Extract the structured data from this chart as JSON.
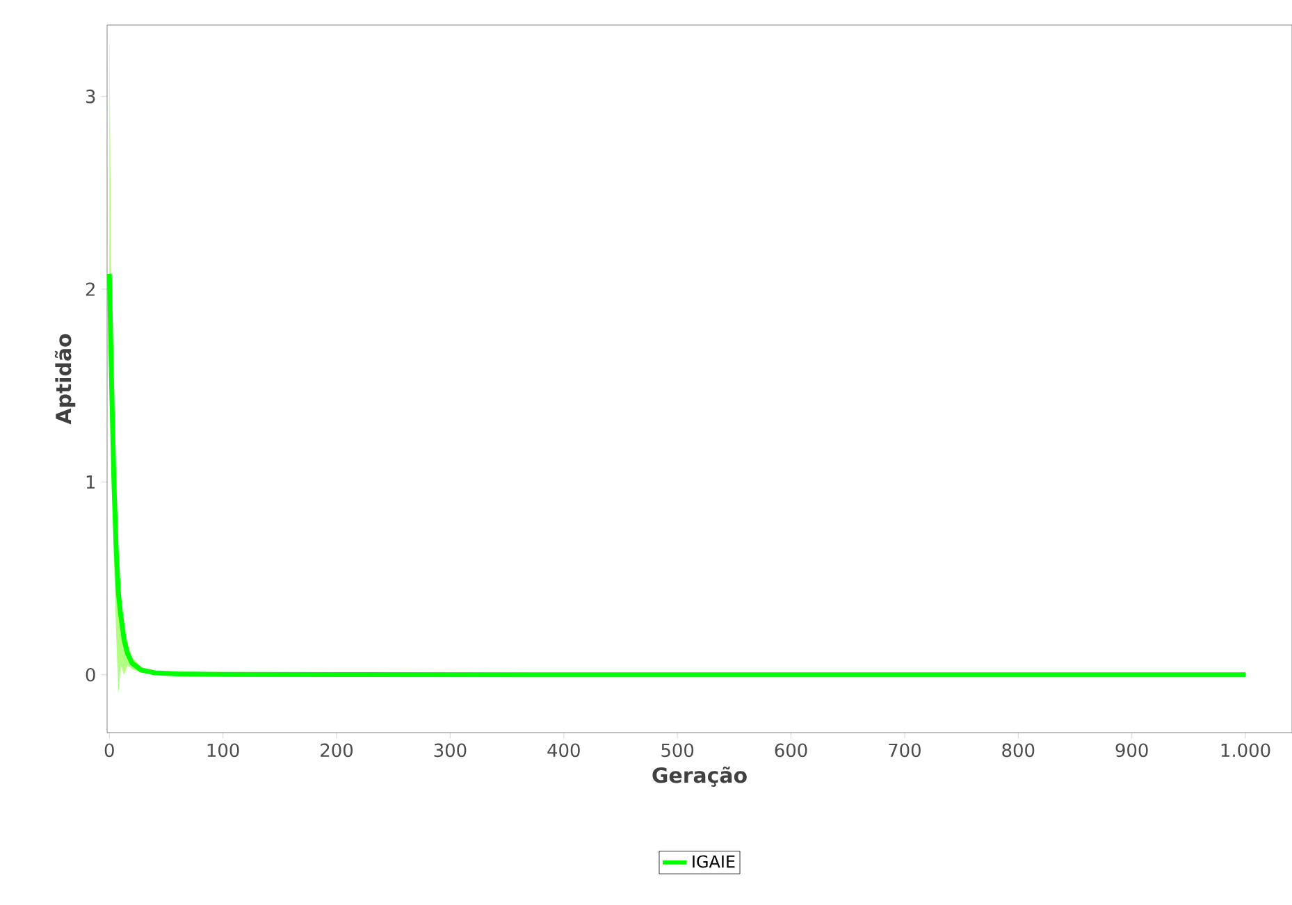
{
  "chart_data": {
    "type": "line",
    "xlabel": "Geração",
    "ylabel": "Aptidão",
    "xlim": [
      -2,
      1041
    ],
    "ylim": [
      -0.3,
      3.37
    ],
    "xticks": [
      0,
      100,
      200,
      300,
      400,
      500,
      600,
      700,
      800,
      900,
      {
        "value": 1000,
        "label": "1.000"
      }
    ],
    "yticks": [
      0,
      1,
      2,
      3
    ],
    "grid": false,
    "legend": "bottom",
    "marker": "none",
    "line_style": "solid",
    "series": [
      {
        "name": "IGAIE",
        "color": "#00ff00",
        "x": [
          0,
          2,
          4,
          6,
          8,
          10,
          13,
          16,
          20,
          28,
          40,
          60,
          100,
          200,
          500,
          1000
        ],
        "values": [
          2.08,
          1.5,
          1.0,
          0.65,
          0.42,
          0.31,
          0.18,
          0.11,
          0.06,
          0.025,
          0.01,
          0.005,
          0.002,
          0.001,
          0,
          0
        ],
        "lower": [
          2.0,
          1.3,
          0.6,
          0.2,
          -0.1,
          0.05,
          0.0,
          0.05,
          0.03,
          0.01,
          0.005,
          0.002,
          0.001,
          0,
          0,
          0
        ],
        "upper": [
          3.37,
          1.8,
          1.3,
          0.8,
          0.55,
          0.4,
          0.25,
          0.16,
          0.09,
          0.04,
          0.015,
          0.008,
          0.003,
          0.002,
          0.001,
          0.001
        ]
      }
    ]
  }
}
